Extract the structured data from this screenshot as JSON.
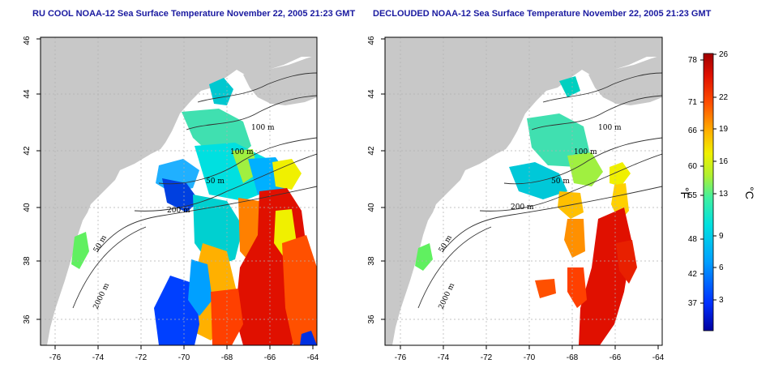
{
  "panels": [
    {
      "id": "left",
      "title": "RU COOL NOAA-12 Sea Surface Temperature November 22, 2005 21:23 GMT",
      "contour_labels": [
        "100 m",
        "100 m",
        "50 m",
        "50 m",
        "200 m",
        "2000 m"
      ]
    },
    {
      "id": "right",
      "title": "DECLOUDED NOAA-12 Sea Surface Temperature November 22, 2005 21:23 GMT",
      "contour_labels": [
        "100 m",
        "100 m",
        "50 m",
        "200 m",
        "50 m",
        "2000 m"
      ]
    }
  ],
  "x_ticks": [
    "-76",
    "-74",
    "-72",
    "-70",
    "-68",
    "-66",
    "-64"
  ],
  "y_ticks": [
    "36",
    "38",
    "40",
    "42",
    "44",
    "46"
  ],
  "colorbar": {
    "fahrenheit_unit": "°F",
    "celsius_unit": "°C",
    "fahrenheit_ticks": [
      "78",
      "71",
      "66",
      "60",
      "55",
      "48",
      "42",
      "37"
    ],
    "celsius_ticks": [
      "26",
      "22",
      "19",
      "16",
      "13",
      "9",
      "6",
      "3"
    ],
    "colors": [
      "#0000b0",
      "#0040ff",
      "#00a0ff",
      "#00e0e0",
      "#40f0a0",
      "#a0f040",
      "#f0f000",
      "#ffb000",
      "#ff6000",
      "#e01000",
      "#a00000"
    ]
  }
}
